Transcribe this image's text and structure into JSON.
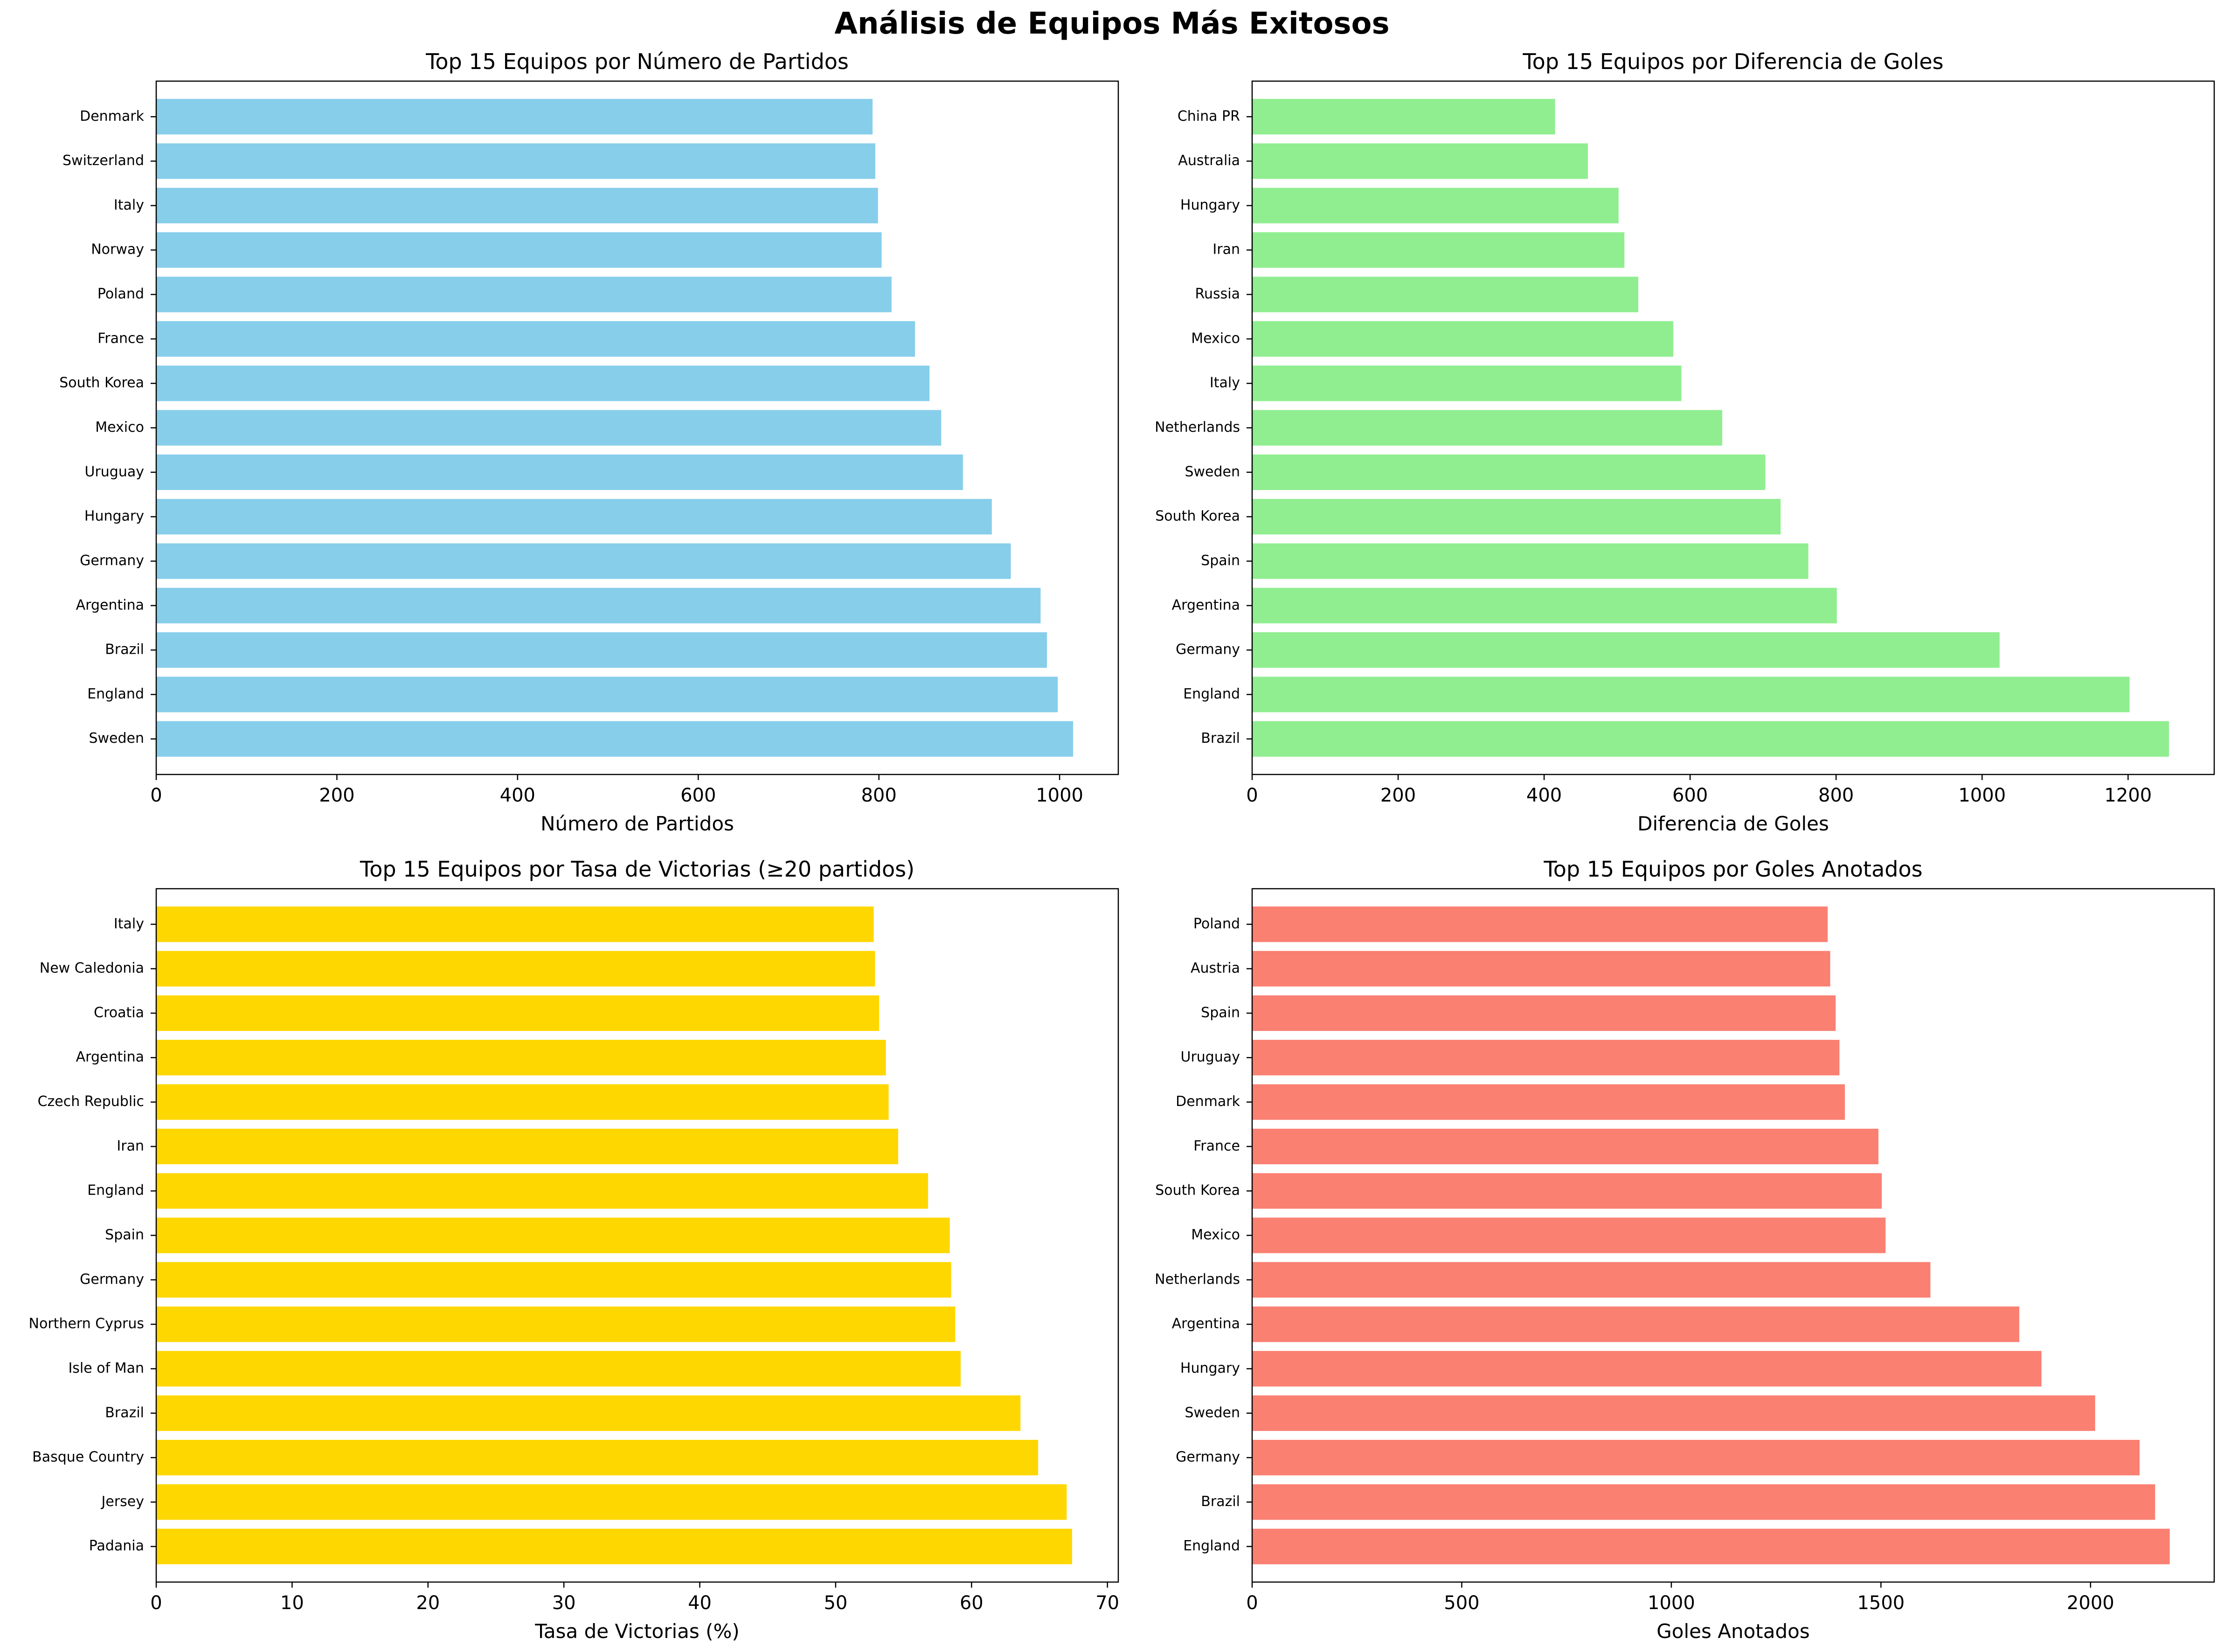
{
  "figure_title": "Análisis de Equipos Más Exitosos",
  "chart_data": [
    {
      "type": "bar",
      "orientation": "horizontal",
      "title": "Top 15 Equipos por Número de Partidos",
      "xlabel": "Número de Partidos",
      "ylabel": "",
      "color": "#87ceeb",
      "xlim": [
        0,
        1065
      ],
      "xticks": [
        0,
        200,
        400,
        600,
        800,
        1000
      ],
      "categories": [
        "Sweden",
        "England",
        "Brazil",
        "Argentina",
        "Germany",
        "Hungary",
        "Uruguay",
        "Mexico",
        "South Korea",
        "France",
        "Poland",
        "Norway",
        "Italy",
        "Switzerland",
        "Denmark"
      ],
      "values": [
        1015,
        998,
        986,
        979,
        946,
        925,
        893,
        869,
        856,
        840,
        814,
        803,
        799,
        796,
        793
      ]
    },
    {
      "type": "bar",
      "orientation": "horizontal",
      "title": "Top 15 Equipos por Diferencia de Goles",
      "xlabel": "Diferencia de Goles",
      "ylabel": "",
      "color": "#90ee90",
      "xlim": [
        0,
        1318
      ],
      "xticks": [
        0,
        200,
        400,
        600,
        800,
        1000,
        1200
      ],
      "categories": [
        "Brazil",
        "England",
        "Germany",
        "Argentina",
        "Spain",
        "South Korea",
        "Sweden",
        "Netherlands",
        "Italy",
        "Mexico",
        "Russia",
        "Iran",
        "Hungary",
        "Australia",
        "China PR"
      ],
      "values": [
        1256,
        1202,
        1024,
        801,
        762,
        724,
        703,
        644,
        588,
        577,
        529,
        510,
        502,
        460,
        415
      ]
    },
    {
      "type": "bar",
      "orientation": "horizontal",
      "title": "Top 15 Equipos por Tasa de Victorias (≥20 partidos)",
      "xlabel": "Tasa de Victorias (%)",
      "ylabel": "",
      "color": "#ffd700",
      "xlim": [
        0,
        70.8
      ],
      "xticks": [
        0,
        10,
        20,
        30,
        40,
        50,
        60,
        70
      ],
      "categories": [
        "Padania",
        "Jersey",
        "Basque Country",
        "Brazil",
        "Isle of Man",
        "Northern Cyprus",
        "Germany",
        "Spain",
        "England",
        "Iran",
        "Czech Republic",
        "Argentina",
        "Croatia",
        "New Caledonia",
        "Italy"
      ],
      "values": [
        67.4,
        67.0,
        64.9,
        63.6,
        59.2,
        58.8,
        58.5,
        58.4,
        56.8,
        54.6,
        53.9,
        53.7,
        53.2,
        52.9,
        52.8
      ]
    },
    {
      "type": "bar",
      "orientation": "horizontal",
      "title": "Top 15 Equipos por Goles Anotados",
      "xlabel": "Goles Anotados",
      "ylabel": "",
      "color": "#fa8072",
      "xlim": [
        0,
        2295
      ],
      "xticks": [
        0,
        500,
        1000,
        1500,
        2000
      ],
      "categories": [
        "England",
        "Brazil",
        "Germany",
        "Sweden",
        "Hungary",
        "Argentina",
        "Netherlands",
        "Mexico",
        "South Korea",
        "France",
        "Denmark",
        "Uruguay",
        "Spain",
        "Austria",
        "Poland"
      ],
      "values": [
        2189,
        2154,
        2117,
        2011,
        1883,
        1830,
        1618,
        1511,
        1502,
        1494,
        1414,
        1401,
        1392,
        1379,
        1373
      ]
    }
  ]
}
